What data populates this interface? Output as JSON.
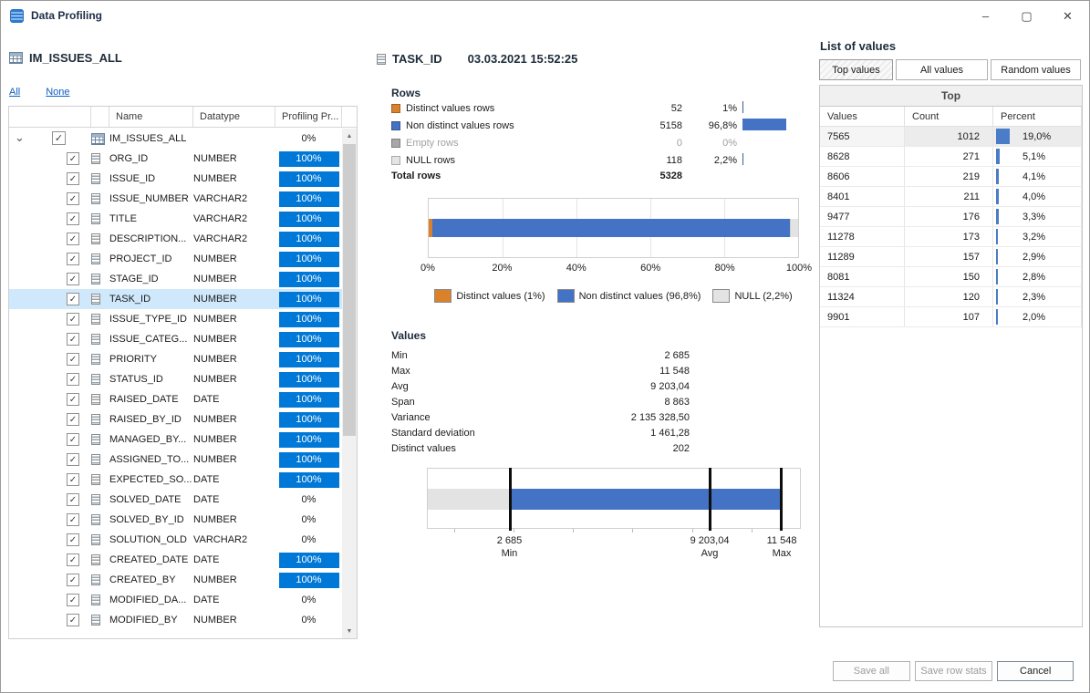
{
  "window": {
    "title": "Data Profiling",
    "controls": {
      "minimize": "–",
      "maximize": "▢",
      "close": "✕"
    }
  },
  "left_panel": {
    "table_name": "IM_ISSUES_ALL",
    "links": {
      "all": "All",
      "none": "None"
    },
    "columns": {
      "name": "Name",
      "datatype": "Datatype",
      "profiling": "Profiling Pr..."
    },
    "root_row": {
      "name": "IM_ISSUES_ALL",
      "progress": "0%",
      "checked": true,
      "expanded": true
    },
    "fields": [
      {
        "name": "ORG_ID",
        "datatype": "NUMBER",
        "progress": "100%",
        "checked": true
      },
      {
        "name": "ISSUE_ID",
        "datatype": "NUMBER",
        "progress": "100%",
        "checked": true
      },
      {
        "name": "ISSUE_NUMBER",
        "datatype": "VARCHAR2",
        "progress": "100%",
        "checked": true
      },
      {
        "name": "TITLE",
        "datatype": "VARCHAR2",
        "progress": "100%",
        "checked": true
      },
      {
        "name": "DESCRIPTION...",
        "datatype": "VARCHAR2",
        "progress": "100%",
        "checked": true
      },
      {
        "name": "PROJECT_ID",
        "datatype": "NUMBER",
        "progress": "100%",
        "checked": true
      },
      {
        "name": "STAGE_ID",
        "datatype": "NUMBER",
        "progress": "100%",
        "checked": true
      },
      {
        "name": "TASK_ID",
        "datatype": "NUMBER",
        "progress": "100%",
        "checked": true,
        "selected": true
      },
      {
        "name": "ISSUE_TYPE_ID",
        "datatype": "NUMBER",
        "progress": "100%",
        "checked": true
      },
      {
        "name": "ISSUE_CATEG...",
        "datatype": "NUMBER",
        "progress": "100%",
        "checked": true
      },
      {
        "name": "PRIORITY",
        "datatype": "NUMBER",
        "progress": "100%",
        "checked": true
      },
      {
        "name": "STATUS_ID",
        "datatype": "NUMBER",
        "progress": "100%",
        "checked": true
      },
      {
        "name": "RAISED_DATE",
        "datatype": "DATE",
        "progress": "100%",
        "checked": true
      },
      {
        "name": "RAISED_BY_ID",
        "datatype": "NUMBER",
        "progress": "100%",
        "checked": true
      },
      {
        "name": "MANAGED_BY...",
        "datatype": "NUMBER",
        "progress": "100%",
        "checked": true
      },
      {
        "name": "ASSIGNED_TO...",
        "datatype": "NUMBER",
        "progress": "100%",
        "checked": true
      },
      {
        "name": "EXPECTED_SO...",
        "datatype": "DATE",
        "progress": "100%",
        "checked": true
      },
      {
        "name": "SOLVED_DATE",
        "datatype": "DATE",
        "progress": "0%",
        "checked": true
      },
      {
        "name": "SOLVED_BY_ID",
        "datatype": "NUMBER",
        "progress": "0%",
        "checked": true
      },
      {
        "name": "SOLUTION_OLD",
        "datatype": "VARCHAR2",
        "progress": "0%",
        "checked": true
      },
      {
        "name": "CREATED_DATE",
        "datatype": "DATE",
        "progress": "100%",
        "checked": true
      },
      {
        "name": "CREATED_BY",
        "datatype": "NUMBER",
        "progress": "100%",
        "checked": true
      },
      {
        "name": "MODIFIED_DA...",
        "datatype": "DATE",
        "progress": "0%",
        "checked": true
      },
      {
        "name": "MODIFIED_BY",
        "datatype": "NUMBER",
        "progress": "0%",
        "checked": true
      }
    ]
  },
  "main_panel": {
    "column_name": "TASK_ID",
    "timestamp": "03.03.2021 15:52:25",
    "rows_section": {
      "title": "Rows",
      "stats": [
        {
          "label": "Distinct values rows",
          "count": "52",
          "percent": "1%",
          "percent_value": 1.0,
          "color": "#d9822b",
          "muted": false
        },
        {
          "label": "Non distinct values rows",
          "count": "5158",
          "percent": "96,8%",
          "percent_value": 96.8,
          "color": "#4472c4",
          "muted": false
        },
        {
          "label": "Empty rows",
          "count": "0",
          "percent": "0%",
          "percent_value": 0.0,
          "color": "#a8a8a8",
          "muted": true
        },
        {
          "label": "NULL rows",
          "count": "118",
          "percent": "2,2%",
          "percent_value": 2.2,
          "color": "#e4e4e4",
          "muted": false
        }
      ],
      "total_label": "Total rows",
      "total_value": "5328"
    },
    "values_section": {
      "title": "Values",
      "stats": [
        {
          "label": "Min",
          "value": "2 685"
        },
        {
          "label": "Max",
          "value": "11 548"
        },
        {
          "label": "Avg",
          "value": "9 203,04"
        },
        {
          "label": "Span",
          "value": "8 863"
        },
        {
          "label": "Variance",
          "value": "2 135 328,50"
        },
        {
          "label": "Standard deviation",
          "value": "1 461,28"
        },
        {
          "label": "Distinct values",
          "value": "202"
        }
      ]
    }
  },
  "chart_data": [
    {
      "type": "bar",
      "subtype": "stacked-horizontal-percent",
      "title": "Rows distribution",
      "series": [
        {
          "name": "Distinct values",
          "value": 1.0,
          "color": "#d9822b"
        },
        {
          "name": "Non distinct values",
          "value": 96.8,
          "color": "#4472c4"
        },
        {
          "name": "NULL",
          "value": 2.2,
          "color": "#e3e3e3"
        }
      ],
      "x_ticks": [
        "0%",
        "20%",
        "40%",
        "60%",
        "80%",
        "100%"
      ],
      "xlim": [
        0,
        100
      ],
      "grid": true,
      "legend_position": "bottom",
      "legend": [
        {
          "label": "Distinct values (1%)",
          "color": "#d9822b"
        },
        {
          "label": "Non distinct values (96,8%)",
          "color": "#4472c4"
        },
        {
          "label": "NULL (2,2%)",
          "color": "#e3e3e3"
        }
      ]
    },
    {
      "type": "area",
      "subtype": "min-avg-max-range-band",
      "axis_range": [
        0,
        12170
      ],
      "bands": [
        {
          "name": "below-min",
          "from": 0,
          "to": 2685,
          "color": "#e3e3e3"
        },
        {
          "name": "min-to-max",
          "from": 2685,
          "to": 11548,
          "color": "#4472c4"
        }
      ],
      "markers": [
        {
          "sublabel": "Min",
          "label": "2 685",
          "value": 2685
        },
        {
          "sublabel": "Avg",
          "label": "9 203,04",
          "value": 9203.04
        },
        {
          "sublabel": "Max",
          "label": "11 548",
          "value": 11548
        }
      ]
    }
  ],
  "right_panel": {
    "title": "List of values",
    "tabs": [
      {
        "label": "Top values",
        "active": true
      },
      {
        "label": "All values",
        "active": false
      },
      {
        "label": "Random values",
        "active": false
      }
    ],
    "table": {
      "group_header": "Top",
      "columns": {
        "values": "Values",
        "count": "Count",
        "percent": "Percent"
      },
      "rows": [
        {
          "value": "7565",
          "count": "1012",
          "percent": "19,0%",
          "percent_value": 19.0
        },
        {
          "value": "8628",
          "count": "271",
          "percent": "5,1%",
          "percent_value": 5.1
        },
        {
          "value": "8606",
          "count": "219",
          "percent": "4,1%",
          "percent_value": 4.1
        },
        {
          "value": "8401",
          "count": "211",
          "percent": "4,0%",
          "percent_value": 4.0
        },
        {
          "value": "9477",
          "count": "176",
          "percent": "3,3%",
          "percent_value": 3.3
        },
        {
          "value": "11278",
          "count": "173",
          "percent": "3,2%",
          "percent_value": 3.2
        },
        {
          "value": "11289",
          "count": "157",
          "percent": "2,9%",
          "percent_value": 2.9
        },
        {
          "value": "8081",
          "count": "150",
          "percent": "2,8%",
          "percent_value": 2.8
        },
        {
          "value": "11324",
          "count": "120",
          "percent": "2,3%",
          "percent_value": 2.3
        },
        {
          "value": "9901",
          "count": "107",
          "percent": "2,0%",
          "percent_value": 2.0
        }
      ]
    },
    "buttons": [
      {
        "label": "Save all",
        "disabled": true
      },
      {
        "label": "Save row stats",
        "disabled": true
      },
      {
        "label": "Cancel",
        "disabled": false
      }
    ]
  }
}
